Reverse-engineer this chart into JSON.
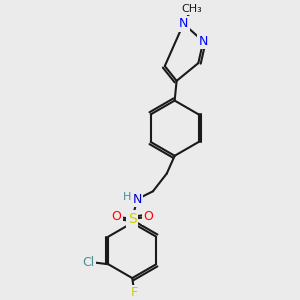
{
  "bg_color": "#ebebeb",
  "bond_color": "#1a1a1a",
  "bond_width": 1.5,
  "atom_colors": {
    "N": "#0000ff",
    "N_sulfonamide": "#0000cc",
    "H": "#4a9090",
    "Cl": "#4a9090",
    "F": "#cccc00",
    "S": "#cccc00",
    "O": "#ff0000",
    "C": "#1a1a1a"
  },
  "font_size": 9,
  "font_size_small": 8
}
